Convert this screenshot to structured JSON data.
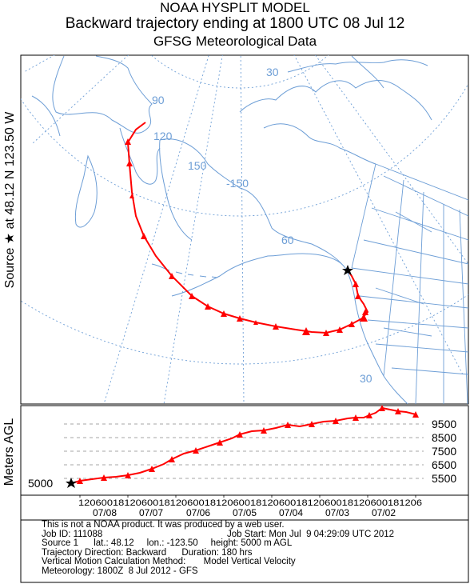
{
  "titles": {
    "line1": "NOAA HYSPLIT MODEL",
    "line2": "Backward trajectory ending at 1800 UTC 08 Jul 12",
    "line3": "GFSG Meteorological Data"
  },
  "source_label": "Source ★ at   48.12 N  123.50 W",
  "map": {
    "grid_labels": [
      "30",
      "90",
      "120",
      "150",
      "-150",
      "60",
      "30"
    ],
    "trajectory_color": "#ff0000",
    "map_line_color": "#6d9ed6",
    "grid_line_color": "#6d9ed6"
  },
  "vertical": {
    "ylabel": "Meters AGL",
    "start_height_label": "5000",
    "right_ticks": [
      "9500",
      "8500",
      "7500",
      "6500",
      "5500"
    ],
    "time_ticks": "120600181206001812060018120600181206001812060018120600181206",
    "dates": [
      "07/08",
      "07/07",
      "07/06",
      "07/05",
      "07/04",
      "07/03",
      "07/02"
    ]
  },
  "info": {
    "line1": "This is not a NOAA product. It was produced by a web user.",
    "job_id": "Job ID: 111088",
    "job_start": "Job Start: Mon Jul  9 04:29:09 UTC 2012",
    "source": "Source 1      lat.: 48.12     lon.: -123.50     height: 5000 m AGL",
    "direction": "Trajectory Direction: Backward      Duration: 180 hrs",
    "vertical_motion": "Vertical Motion Calculation Method:       Model Vertical Velocity",
    "meteorology": "Meteorology: 1800Z  8 Jul 2012 - GFS"
  }
}
